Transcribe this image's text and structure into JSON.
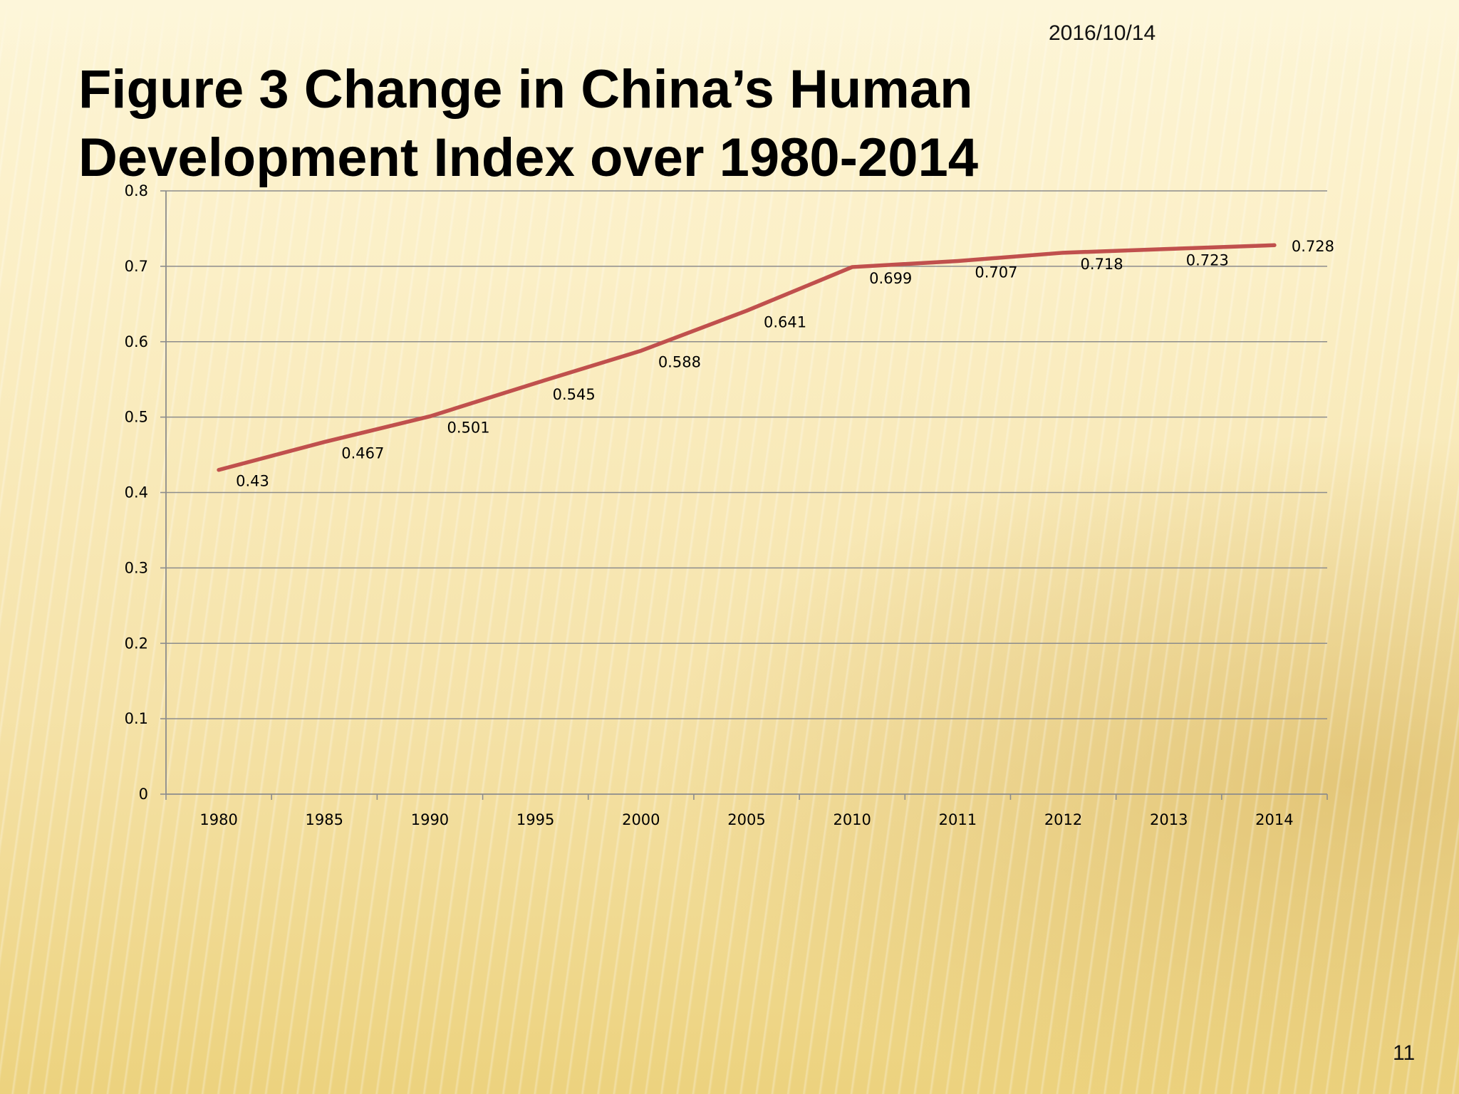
{
  "slide": {
    "date": "2016/10/14",
    "title_line1": "Figure 3   Change in China’s Human",
    "title_line2": "Development Index over 1980-2014",
    "page_number": "11"
  },
  "chart_data": {
    "type": "line",
    "categories": [
      "1980",
      "1985",
      "1990",
      "1995",
      "2000",
      "2005",
      "2010",
      "2011",
      "2012",
      "2013",
      "2014"
    ],
    "series": [
      {
        "values": [
          0.43,
          0.467,
          0.501,
          0.545,
          0.588,
          0.641,
          0.699,
          0.707,
          0.718,
          0.723,
          0.728
        ],
        "color": "#c0504d"
      }
    ],
    "data_labels": [
      "0.43",
      "0.467",
      "0.501",
      "0.545",
      "0.588",
      "0.641",
      "0.699",
      "0.707",
      "0.718",
      "0.723",
      "0.728"
    ],
    "y_ticks": [
      "0",
      "0.1",
      "0.2",
      "0.3",
      "0.4",
      "0.5",
      "0.6",
      "0.7",
      "0.8"
    ],
    "ylim": [
      0,
      0.8
    ],
    "grid": true,
    "legend": "none",
    "title": "",
    "xlabel": "",
    "ylabel": ""
  }
}
